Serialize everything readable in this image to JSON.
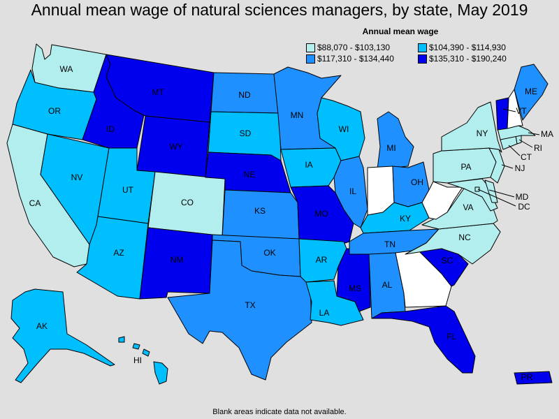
{
  "title": "Annual mean wage of natural sciences managers, by state, May 2019",
  "legend": {
    "title": "Annual mean wage",
    "items": [
      {
        "label": "$88,070 - $103,130",
        "color": "#b3eeee"
      },
      {
        "label": "$104,390 - $114,930",
        "color": "#00bfff"
      },
      {
        "label": "$117,310 - $134,440",
        "color": "#1e90ff"
      },
      {
        "label": "$135,310 - $190,240",
        "color": "#0000ee"
      }
    ]
  },
  "footnote": "Blank areas indicate data not available.",
  "blank_color": "#ffffff",
  "states": {
    "WA": 1,
    "OR": 2,
    "CA": 1,
    "NV": 2,
    "ID": 4,
    "MT": 4,
    "WY": 4,
    "UT": 2,
    "AZ": 2,
    "CO": 1,
    "NM": 4,
    "ND": 3,
    "SD": 2,
    "NE": 4,
    "KS": 3,
    "OK": 3,
    "TX": 3,
    "MN": 3,
    "IA": 2,
    "MO": 4,
    "AR": 2,
    "LA": 2,
    "WI": 2,
    "IL": 3,
    "MS": 4,
    "MI": 3,
    "IN": 0,
    "OH": 3,
    "KY": 2,
    "TN": 3,
    "AL": 3,
    "GA": 0,
    "FL": 4,
    "SC": 4,
    "NC": 1,
    "VA": 1,
    "WV": 0,
    "MD": 1,
    "DE": 1,
    "PA": 1,
    "NJ": 1,
    "NY": 1,
    "CT": 1,
    "RI": 1,
    "MA": 1,
    "VT": 4,
    "NH": 0,
    "ME": 3,
    "AK": 2,
    "HI": 2,
    "PR": 4,
    "DC": 1
  }
}
